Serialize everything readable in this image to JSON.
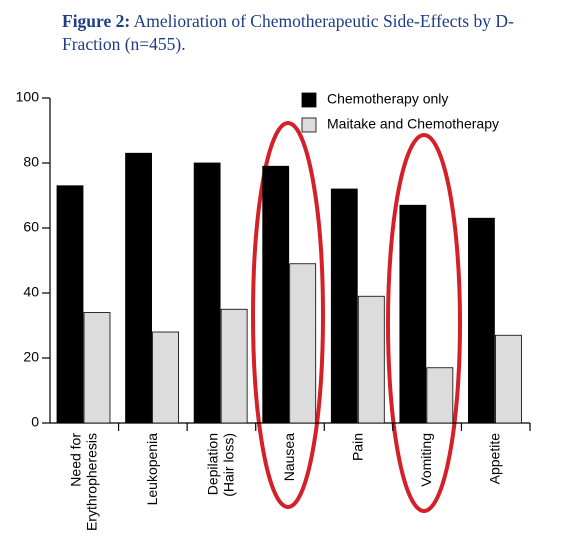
{
  "chart_data": {
    "type": "bar",
    "title_label": "Figure 2:",
    "title": "Amelioration of Chemotherapeutic Side-Effects by D-Fraction (n=455).",
    "categories": [
      "Need for\nErythropheresis",
      "Leukopenia",
      "Depilation\n(Hair loss)",
      "Nausea",
      "Pain",
      "Vomiting",
      "Appetite"
    ],
    "series": [
      {
        "name": "Chemotherapy only",
        "color": "#000000",
        "values": [
          73,
          83,
          80,
          79,
          72,
          67,
          63
        ]
      },
      {
        "name": "Maitake and Chemotherapy",
        "color": "#dcdcdc",
        "values": [
          34,
          28,
          35,
          49,
          39,
          17,
          27
        ]
      }
    ],
    "ylim": [
      0,
      100
    ],
    "yticks": [
      0,
      20,
      40,
      60,
      80,
      100
    ],
    "grid": false,
    "legend": "top-right"
  }
}
